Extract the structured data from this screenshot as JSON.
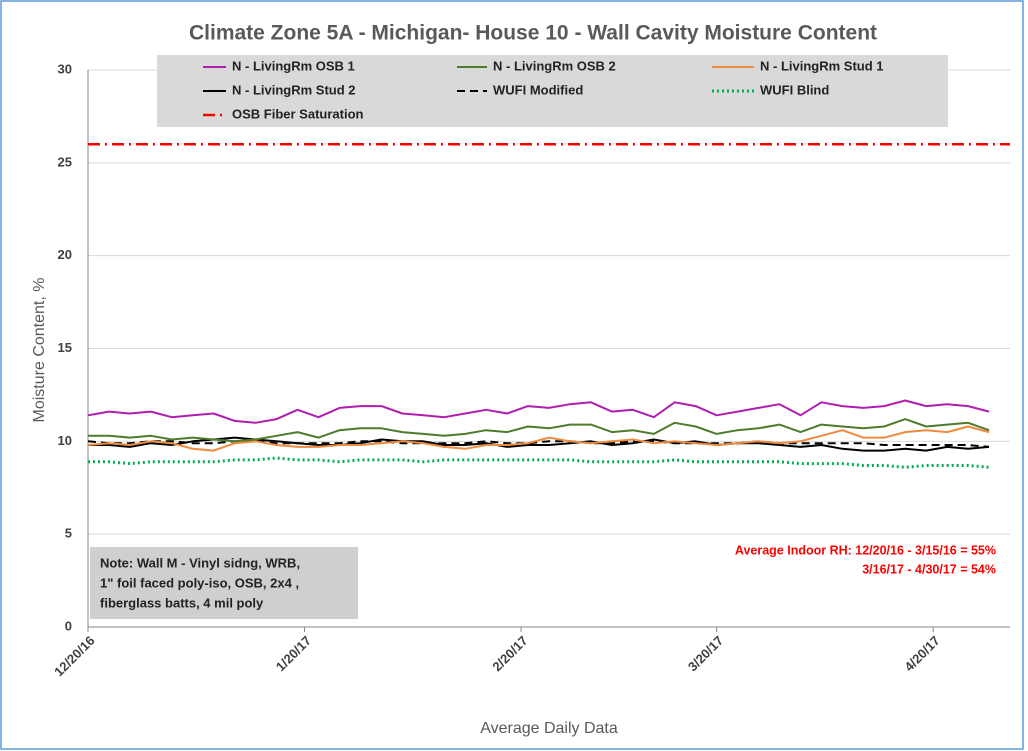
{
  "chart_data": {
    "type": "line",
    "title": "Climate Zone 5A - Michigan- House 10 - Wall Cavity Moisture Content",
    "y_label": "Moisture Content, %",
    "x_label": "Average Daily Data",
    "ylim": [
      0,
      30
    ],
    "yticks": [
      0,
      5,
      10,
      15,
      20,
      25,
      30
    ],
    "xlim": [
      "12/20/16",
      "5/1/17"
    ],
    "xticks": [
      "12/20/16",
      "1/20/17",
      "2/20/17",
      "3/20/17",
      "4/20/17"
    ],
    "grid": true,
    "legend": "top",
    "x": [
      "12/20/16",
      "12/23/16",
      "12/26/16",
      "12/29/16",
      "1/1/17",
      "1/4/17",
      "1/7/17",
      "1/10/17",
      "1/13/17",
      "1/16/17",
      "1/19/17",
      "1/22/17",
      "1/25/17",
      "1/28/17",
      "1/31/17",
      "2/3/17",
      "2/6/17",
      "2/9/17",
      "2/12/17",
      "2/15/17",
      "2/18/17",
      "2/21/17",
      "2/24/17",
      "2/27/17",
      "3/2/17",
      "3/5/17",
      "3/8/17",
      "3/11/17",
      "3/14/17",
      "3/17/17",
      "3/20/17",
      "3/23/17",
      "3/26/17",
      "3/29/17",
      "4/1/17",
      "4/4/17",
      "4/7/17",
      "4/10/17",
      "4/13/17",
      "4/16/17",
      "4/19/17",
      "4/22/17",
      "4/25/17",
      "4/28/17"
    ],
    "series": [
      {
        "name": "N - LivingRm OSB 1",
        "color": "#b01eb0",
        "style": "solid",
        "values": [
          11.4,
          11.6,
          11.5,
          11.6,
          11.3,
          11.4,
          11.5,
          11.1,
          11.0,
          11.2,
          11.7,
          11.3,
          11.8,
          11.9,
          11.9,
          11.5,
          11.4,
          11.3,
          11.5,
          11.7,
          11.5,
          11.9,
          11.8,
          12.0,
          12.1,
          11.6,
          11.7,
          11.3,
          12.1,
          11.9,
          11.4,
          11.6,
          11.8,
          12.0,
          11.4,
          12.1,
          11.9,
          11.8,
          11.9,
          12.2,
          11.9,
          12.0,
          11.9,
          11.6
        ]
      },
      {
        "name": "N - LivingRm OSB 2",
        "color": "#4f7b2c",
        "style": "solid",
        "values": [
          10.3,
          10.3,
          10.2,
          10.3,
          10.1,
          10.2,
          10.1,
          10.0,
          10.1,
          10.3,
          10.5,
          10.2,
          10.6,
          10.7,
          10.7,
          10.5,
          10.4,
          10.3,
          10.4,
          10.6,
          10.5,
          10.8,
          10.7,
          10.9,
          10.9,
          10.5,
          10.6,
          10.4,
          11.0,
          10.8,
          10.4,
          10.6,
          10.7,
          10.9,
          10.5,
          10.9,
          10.8,
          10.7,
          10.8,
          11.2,
          10.8,
          10.9,
          11.0,
          10.6
        ]
      },
      {
        "name": "N - LivingRm Stud 1",
        "color": "#f08a3c",
        "style": "solid",
        "values": [
          9.8,
          9.9,
          9.8,
          10.0,
          9.9,
          9.6,
          9.5,
          9.9,
          10.0,
          9.8,
          9.7,
          9.7,
          9.8,
          9.8,
          9.9,
          10.0,
          9.9,
          9.7,
          9.6,
          9.8,
          9.8,
          9.9,
          10.2,
          10.0,
          9.9,
          10.0,
          10.1,
          9.9,
          10.0,
          9.9,
          9.8,
          9.9,
          10.0,
          9.9,
          10.0,
          10.3,
          10.6,
          10.2,
          10.2,
          10.5,
          10.6,
          10.5,
          10.8,
          10.5
        ]
      },
      {
        "name": "N - LivingRm Stud 2",
        "color": "#000000",
        "style": "solid",
        "values": [
          9.8,
          9.8,
          9.7,
          9.9,
          9.8,
          10.0,
          10.1,
          10.2,
          10.1,
          10.0,
          9.9,
          9.8,
          9.8,
          9.9,
          10.1,
          10.0,
          10.0,
          9.8,
          9.8,
          9.9,
          9.7,
          9.8,
          9.8,
          9.9,
          10.0,
          9.8,
          9.9,
          10.1,
          9.9,
          10.0,
          9.8,
          9.9,
          9.9,
          9.8,
          9.7,
          9.8,
          9.6,
          9.5,
          9.5,
          9.6,
          9.5,
          9.7,
          9.6,
          9.7
        ]
      },
      {
        "name": "WUFI Modified",
        "color": "#000000",
        "style": "dashed",
        "values": [
          10.0,
          9.9,
          9.9,
          10.0,
          10.0,
          9.9,
          9.9,
          10.0,
          10.0,
          9.9,
          9.9,
          9.9,
          9.9,
          10.0,
          10.0,
          9.9,
          9.9,
          9.9,
          9.9,
          10.0,
          9.9,
          9.9,
          10.0,
          10.0,
          9.9,
          9.9,
          10.0,
          10.0,
          9.9,
          9.9,
          9.9,
          9.9,
          10.0,
          9.9,
          9.9,
          9.9,
          9.9,
          9.9,
          9.8,
          9.8,
          9.8,
          9.8,
          9.8,
          9.7
        ]
      },
      {
        "name": "WUFI Blind",
        "color": "#00b050",
        "style": "dotted",
        "values": [
          8.9,
          8.9,
          8.8,
          8.9,
          8.9,
          8.9,
          8.9,
          9.0,
          9.0,
          9.1,
          9.0,
          9.0,
          8.9,
          9.0,
          9.0,
          9.0,
          8.9,
          9.0,
          9.0,
          9.0,
          9.0,
          9.0,
          9.0,
          9.0,
          8.9,
          8.9,
          8.9,
          8.9,
          9.0,
          8.9,
          8.9,
          8.9,
          8.9,
          8.9,
          8.8,
          8.8,
          8.8,
          8.7,
          8.7,
          8.6,
          8.7,
          8.7,
          8.7,
          8.6
        ]
      }
    ],
    "reference_line": {
      "name": "OSB Fiber Saturation",
      "value": 26,
      "color": "#ff0000",
      "style": "dashdot"
    },
    "note": [
      "Note: Wall M - Vinyl sidng, WRB,",
      "1\" foil faced poly-iso, OSB, 2x4 ,",
      "fiberglass batts, 4 mil poly"
    ],
    "rh_annotation": [
      "Average Indoor RH: 12/20/16 - 3/15/16 = 55%",
      "3/16/17 - 4/30/17 = 54%"
    ]
  }
}
